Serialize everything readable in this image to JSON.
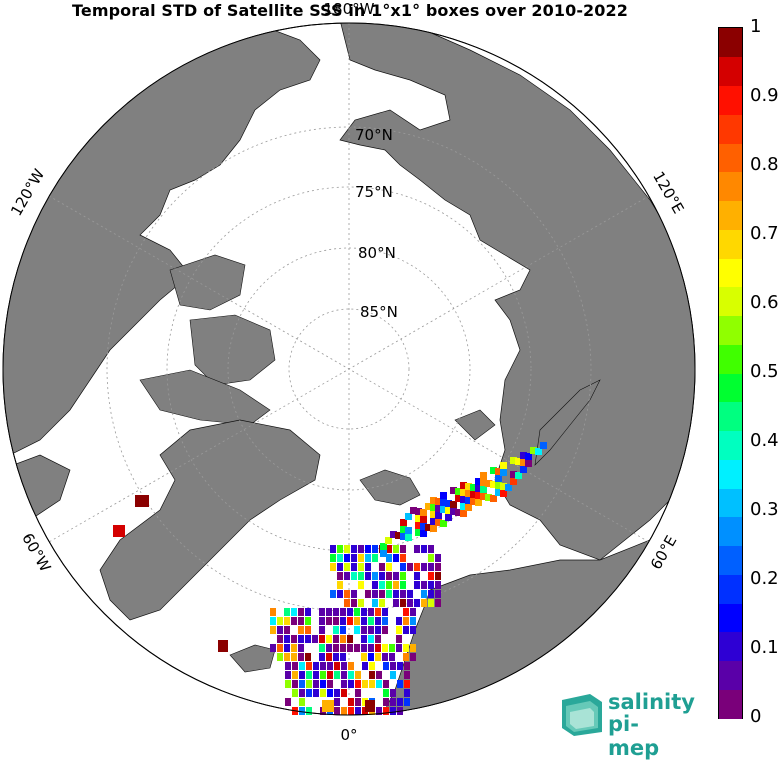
{
  "title": "Temporal STD of Satellite SSS in 1°x1° boxes over 2010-2022",
  "map": {
    "projection": "north-polar-stereographic",
    "longitude_labels": [
      {
        "text": "180°W",
        "role": "top"
      },
      {
        "text": "120°W",
        "role": "upper-left"
      },
      {
        "text": "60°W",
        "role": "lower-left"
      },
      {
        "text": "0°",
        "role": "bottom"
      },
      {
        "text": "60°E",
        "role": "lower-right"
      },
      {
        "text": "120°E",
        "role": "upper-right"
      }
    ],
    "latitude_labels": [
      "70°N",
      "75°N",
      "80°N",
      "85°N"
    ],
    "colors": {
      "land": "#808080",
      "ocean": "#ffffff",
      "outline": "#000000",
      "graticule": "#9a9a9a"
    }
  },
  "colorbar": {
    "min": 0,
    "max": 1,
    "tick_labels": [
      "0",
      "0.1",
      "0.2",
      "0.3",
      "0.4",
      "0.5",
      "0.6",
      "0.7",
      "0.8",
      "0.9",
      "1"
    ],
    "colormap": [
      "#7a007a",
      "#5a00a8",
      "#2e00d4",
      "#0000ff",
      "#0030ff",
      "#0060ff",
      "#0090ff",
      "#00c0ff",
      "#00f0ff",
      "#00ffc0",
      "#00ff80",
      "#00ff30",
      "#40ff00",
      "#90ff00",
      "#d8ff00",
      "#ffff00",
      "#ffd800",
      "#ffb000",
      "#ff8800",
      "#ff6000",
      "#ff3800",
      "#ff1000",
      "#d40000",
      "#8b0000"
    ]
  },
  "logo": {
    "line1": "salinity",
    "line2": "pi-mep"
  }
}
